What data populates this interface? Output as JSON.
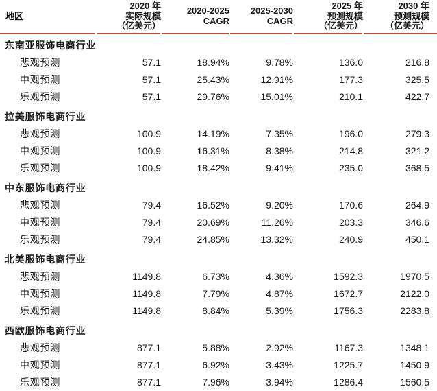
{
  "colors": {
    "accent_rule": "#be4b48",
    "text": "#1a1a1a",
    "background": "#ffffff"
  },
  "table": {
    "header": [
      {
        "lines": [
          "地区"
        ]
      },
      {
        "lines": [
          "2020 年",
          "实际规模",
          "（亿美元）"
        ]
      },
      {
        "lines": [
          "2020-2025",
          "CAGR"
        ]
      },
      {
        "lines": [
          "2025-2030",
          "CAGR"
        ]
      },
      {
        "lines": [
          "2025 年",
          "预测规模",
          "（亿美元）"
        ]
      },
      {
        "lines": [
          "2030 年",
          "预测规模",
          "（亿美元）"
        ]
      }
    ],
    "groups": [
      {
        "name": "东南亚服饰电商行业",
        "rows": [
          {
            "scenario": "悲观预测",
            "values": [
              "57.1",
              "18.94%",
              "9.78%",
              "136.0",
              "216.8"
            ]
          },
          {
            "scenario": "中观预测",
            "values": [
              "57.1",
              "25.43%",
              "12.91%",
              "177.3",
              "325.5"
            ]
          },
          {
            "scenario": "乐观预测",
            "values": [
              "57.1",
              "29.76%",
              "15.01%",
              "210.1",
              "422.7"
            ]
          }
        ]
      },
      {
        "name": "拉美服饰电商行业",
        "rows": [
          {
            "scenario": "悲观预测",
            "values": [
              "100.9",
              "14.19%",
              "7.35%",
              "196.0",
              "279.3"
            ]
          },
          {
            "scenario": "中观预测",
            "values": [
              "100.9",
              "16.31%",
              "8.38%",
              "214.8",
              "321.2"
            ]
          },
          {
            "scenario": "乐观预测",
            "values": [
              "100.9",
              "18.42%",
              "9.41%",
              "235.0",
              "368.5"
            ]
          }
        ]
      },
      {
        "name": "中东服饰电商行业",
        "rows": [
          {
            "scenario": "悲观预测",
            "values": [
              "79.4",
              "16.52%",
              "9.20%",
              "170.6",
              "264.9"
            ]
          },
          {
            "scenario": "中观预测",
            "values": [
              "79.4",
              "20.69%",
              "11.26%",
              "203.3",
              "346.6"
            ]
          },
          {
            "scenario": "乐观预测",
            "values": [
              "79.4",
              "24.85%",
              "13.32%",
              "240.9",
              "450.1"
            ]
          }
        ]
      },
      {
        "name": "北美服饰电商行业",
        "rows": [
          {
            "scenario": "悲观预测",
            "values": [
              "1149.8",
              "6.73%",
              "4.36%",
              "1592.3",
              "1970.5"
            ]
          },
          {
            "scenario": "中观预测",
            "values": [
              "1149.8",
              "7.79%",
              "4.87%",
              "1672.7",
              "2122.0"
            ]
          },
          {
            "scenario": "乐观预测",
            "values": [
              "1149.8",
              "8.84%",
              "5.39%",
              "1756.3",
              "2283.8"
            ]
          }
        ]
      },
      {
        "name": "西欧服饰电商行业",
        "rows": [
          {
            "scenario": "悲观预测",
            "values": [
              "877.1",
              "5.88%",
              "2.92%",
              "1167.3",
              "1348.1"
            ]
          },
          {
            "scenario": "中观预测",
            "values": [
              "877.1",
              "6.92%",
              "3.43%",
              "1225.7",
              "1450.9"
            ]
          },
          {
            "scenario": "乐观预测",
            "values": [
              "877.1",
              "7.96%",
              "3.94%",
              "1286.4",
              "1560.5"
            ]
          }
        ]
      }
    ]
  }
}
